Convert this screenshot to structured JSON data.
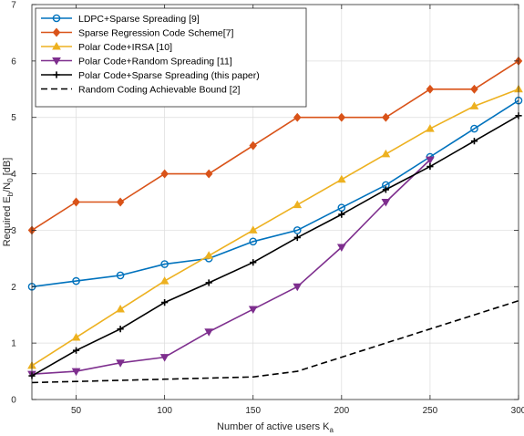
{
  "chart_data": {
    "type": "line",
    "xlabel": "Number of active users K",
    "xlabel_sub": "a",
    "ylabel_prefix": "Required E",
    "ylabel_sub1": "b",
    "ylabel_mid": "/N",
    "ylabel_sub2": "0",
    "ylabel_suffix": " [dB]",
    "xlim": [
      25,
      300
    ],
    "ylim": [
      0,
      7
    ],
    "xticks": [
      50,
      100,
      150,
      200,
      250,
      300
    ],
    "yticks": [
      0,
      1,
      2,
      3,
      4,
      5,
      6,
      7
    ],
    "grid": true,
    "legend_position": "top-left",
    "series": [
      {
        "name": "LDPC+Sparse Spreading [9]",
        "color": "#0072BD",
        "marker": "circle",
        "dash": "solid",
        "x": [
          25,
          50,
          75,
          100,
          125,
          150,
          175,
          200,
          225,
          250,
          275,
          300
        ],
        "y": [
          2.0,
          2.1,
          2.2,
          2.4,
          2.5,
          2.8,
          3.0,
          3.4,
          3.8,
          4.3,
          4.8,
          5.3
        ]
      },
      {
        "name": "Sparse Regression Code Scheme[7]",
        "color": "#D95319",
        "marker": "diamond",
        "dash": "solid",
        "x": [
          25,
          50,
          75,
          100,
          125,
          150,
          175,
          200,
          225,
          250,
          275,
          300
        ],
        "y": [
          3.0,
          3.5,
          3.5,
          4.0,
          4.0,
          4.5,
          5.0,
          5.0,
          5.0,
          5.5,
          5.5,
          6.0
        ]
      },
      {
        "name": "Polar Code+IRSA [10]",
        "color": "#EDB120",
        "marker": "triangle-up",
        "dash": "solid",
        "x": [
          25,
          50,
          75,
          100,
          125,
          150,
          175,
          200,
          225,
          250,
          275,
          300
        ],
        "y": [
          0.6,
          1.1,
          1.6,
          2.1,
          2.55,
          3.0,
          3.45,
          3.9,
          4.35,
          4.8,
          5.2,
          5.5
        ]
      },
      {
        "name": "Polar Code+Random Spreading [11]",
        "color": "#7E2F8E",
        "marker": "triangle-down",
        "dash": "solid",
        "x": [
          25,
          50,
          75,
          100,
          125,
          150,
          175,
          200,
          225,
          250
        ],
        "y": [
          0.45,
          0.5,
          0.65,
          0.75,
          1.2,
          1.6,
          2.0,
          2.7,
          3.5,
          4.25
        ]
      },
      {
        "name": "Polar Code+Sparse Spreading (this paper)",
        "color": "#000000",
        "marker": "plus",
        "dash": "solid",
        "x": [
          25,
          50,
          75,
          100,
          125,
          150,
          175,
          200,
          225,
          250,
          275,
          300
        ],
        "y": [
          0.42,
          0.87,
          1.25,
          1.72,
          2.07,
          2.43,
          2.87,
          3.28,
          3.72,
          4.13,
          4.58,
          5.03
        ]
      },
      {
        "name": "Random Coding Achievable Bound [2]",
        "color": "#000000",
        "marker": "none",
        "dash": "dashed",
        "x": [
          25,
          50,
          75,
          100,
          125,
          150,
          175,
          200,
          225,
          250,
          275,
          300
        ],
        "y": [
          0.3,
          0.32,
          0.34,
          0.36,
          0.38,
          0.4,
          0.5,
          0.75,
          1.0,
          1.25,
          1.5,
          1.75
        ]
      }
    ]
  }
}
